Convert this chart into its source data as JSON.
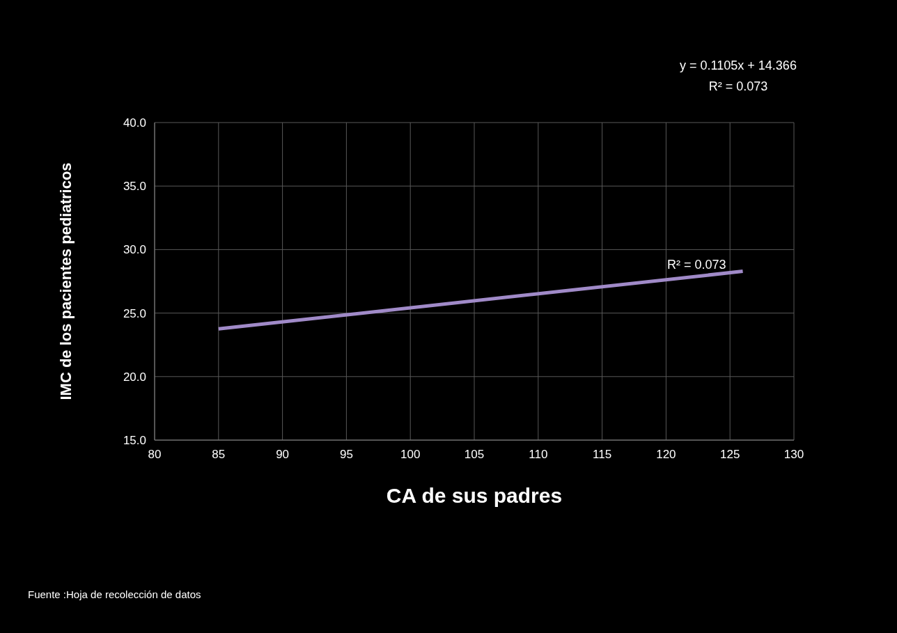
{
  "chart_data": {
    "type": "line",
    "xlabel": "CA de sus padres",
    "ylabel": "IMC  de los pacientes pediatricos",
    "series": [
      {
        "color": "#a08ac8",
        "x": [
          85,
          126
        ],
        "values": [
          23.76,
          28.29
        ]
      }
    ],
    "xlim": [
      80,
      130
    ],
    "xticks": [
      80,
      85,
      90,
      95,
      100,
      105,
      110,
      115,
      120,
      125,
      130
    ],
    "ylim": [
      15,
      40
    ],
    "yticks": [
      {
        "value": 15,
        "label": "15.0"
      },
      {
        "value": 20,
        "label": "20.0"
      },
      {
        "value": 25,
        "label": "25.0"
      },
      {
        "value": 30,
        "label": "30.0"
      },
      {
        "value": 35,
        "label": "35.0"
      },
      {
        "value": 40,
        "label": "40.0"
      }
    ],
    "grid": true,
    "marker": "none",
    "line_style": "solid",
    "annotations": [
      "y = 0.1105x + 14.366",
      "R² = 0.073",
      {
        "text": "R² = 0.073",
        "x": 126,
        "y": 28.29
      },
      "Fuente :Hoja de recolección de datos"
    ]
  }
}
